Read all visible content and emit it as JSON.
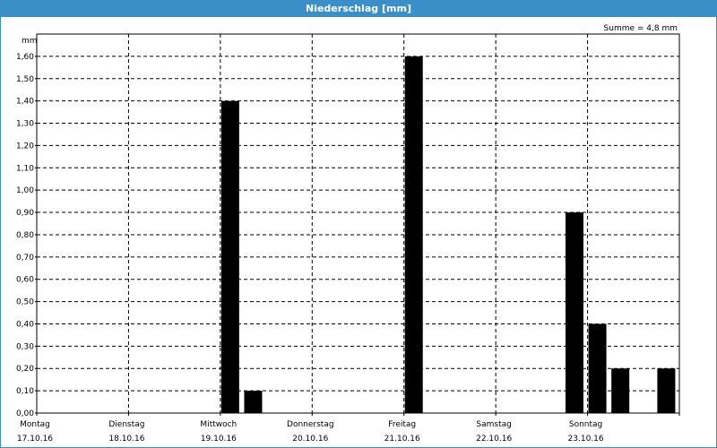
{
  "window": {
    "title": "Niederschlag [mm]"
  },
  "chart_data": {
    "type": "bar",
    "title": "Niederschlag [mm]",
    "summary": "Summe = 4,8 mm",
    "ylabel": "mm",
    "xlabel": "",
    "ylim": [
      0,
      1.7
    ],
    "yticks": [
      "0,00",
      "0,10",
      "0,20",
      "0,30",
      "0,40",
      "0,50",
      "0,60",
      "0,70",
      "0,80",
      "0,90",
      "1,00",
      "1,10",
      "1,20",
      "1,30",
      "1,40",
      "1,50",
      "1,60"
    ],
    "xlim_days": [
      0,
      7
    ],
    "day_ticks": [
      {
        "day": "Montag",
        "date": "17.10.16"
      },
      {
        "day": "Dienstag",
        "date": "18.10.16"
      },
      {
        "day": "Mittwoch",
        "date": "19.10.16"
      },
      {
        "day": "Donnerstag",
        "date": "20.10.16"
      },
      {
        "day": "Freitag",
        "date": "21.10.16"
      },
      {
        "day": "Samstag",
        "date": "22.10.16"
      },
      {
        "day": "Sonntag",
        "date": "23.10.16"
      }
    ],
    "grid": true,
    "bars": [
      {
        "time": "19.10.16 00:00",
        "value": 1.4
      },
      {
        "time": "19.10.16 06:00",
        "value": 0.1
      },
      {
        "time": "21.10.16 00:00",
        "value": 1.6
      },
      {
        "time": "22.10.16 18:00",
        "value": 0.9
      },
      {
        "time": "23.10.16 00:00",
        "value": 0.4
      },
      {
        "time": "23.10.16 06:00",
        "value": 0.2
      },
      {
        "time": "23.10.16 18:00",
        "value": 0.2
      }
    ],
    "bar_color": "#000000",
    "grid_color": "#000000"
  }
}
